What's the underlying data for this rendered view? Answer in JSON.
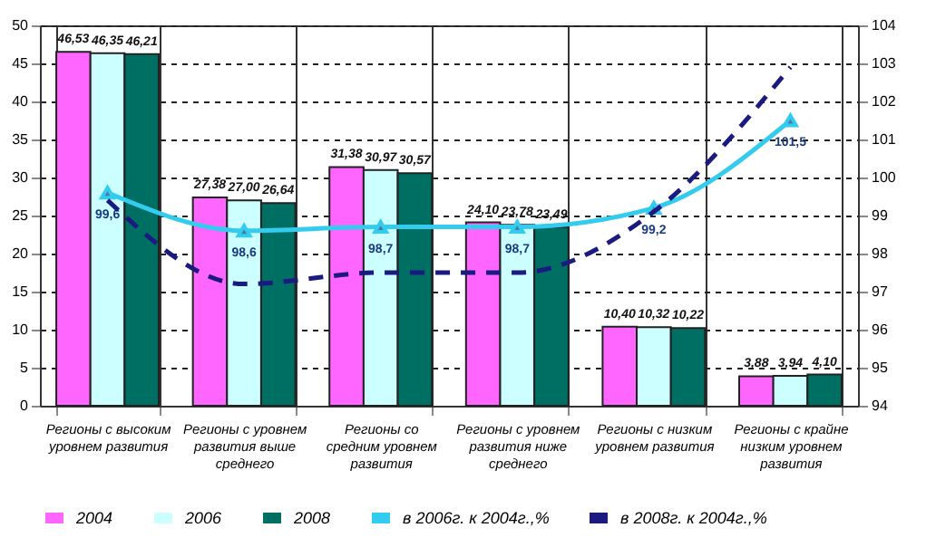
{
  "chart_data": {
    "type": "bar",
    "categories": [
      "Регионы с высоким уровнем развития",
      "Регионы с уровнем развития выше среднего",
      "Регионы со средним уровнем развития",
      "Регионы с уровнем развития ниже среднего",
      "Регионы с низким уровнем развития",
      "Регионы с крайне низким уровнем развития"
    ],
    "series": [
      {
        "name": "2004",
        "color": "#ff66ff",
        "values": [
          46.53,
          27.38,
          31.38,
          24.1,
          10.4,
          3.88
        ],
        "value_labels": [
          "46,53",
          "27,38",
          "31,38",
          "24,10",
          "10,40",
          "3,88"
        ]
      },
      {
        "name": "2006",
        "color": "#ccffff",
        "values": [
          46.35,
          27.0,
          30.97,
          23.78,
          10.32,
          3.94
        ],
        "value_labels": [
          "46,35",
          "27,00",
          "30,97",
          "23,78",
          "10,32",
          "3,94"
        ]
      },
      {
        "name": "2008",
        "color": "#006f63",
        "values": [
          46.21,
          26.64,
          30.57,
          23.49,
          10.22,
          4.1
        ],
        "value_labels": [
          "46,21",
          "26,64",
          "30,57",
          "23,49",
          "10,22",
          "4,10"
        ]
      },
      {
        "name": "в 2006г. к 2004г.,%",
        "type": "line",
        "axis": "y2",
        "color": "#33ccee",
        "marker": "triangle",
        "line_style": "solid",
        "values": [
          99.6,
          98.6,
          98.7,
          98.7,
          99.2,
          101.5
        ],
        "value_labels": [
          "99,6",
          "98,6",
          "98,7",
          "98,7",
          "99,2",
          "101,5"
        ]
      },
      {
        "name": "в 2008г. к 2004г.,%",
        "type": "line",
        "axis": "y2",
        "color": "#1a1a80",
        "marker": "none",
        "line_style": "dashed",
        "values": [
          99.4,
          97.2,
          97.5,
          97.5,
          99.1,
          102.9
        ]
      }
    ],
    "ylim": [
      0,
      50
    ],
    "yticks": [
      0,
      5,
      10,
      15,
      20,
      25,
      30,
      35,
      40,
      45,
      50
    ],
    "y2lim": [
      94,
      104
    ],
    "y2ticks": [
      94,
      95,
      96,
      97,
      98,
      99,
      100,
      101,
      102,
      103,
      104
    ],
    "grid": "y",
    "legend": "bottom"
  }
}
